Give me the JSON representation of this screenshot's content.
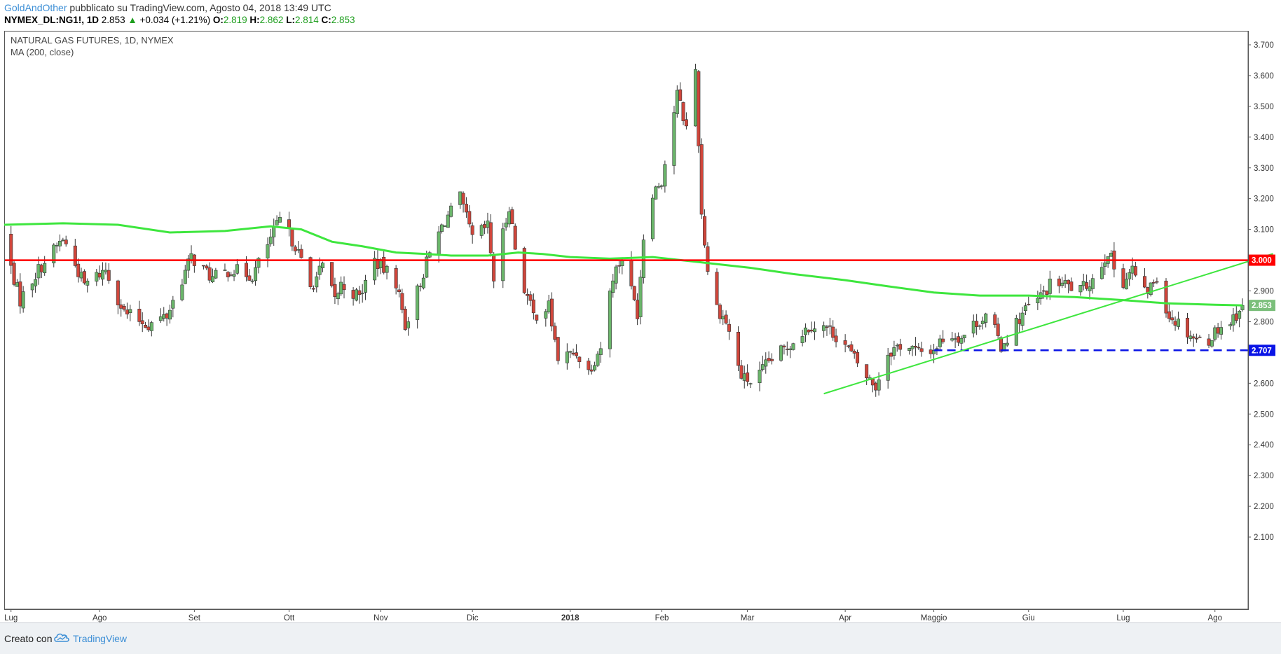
{
  "header": {
    "author": "GoldAndOther",
    "published": "pubblicato su TradingView.com, Agosto 04, 2018 13:49 UTC",
    "symbol": "NYMEX_DL:NG1!, 1D",
    "last": "2.853",
    "change": "+0.034 (+1.21%)",
    "o_label": "O:",
    "o": "2.819",
    "h_label": "H:",
    "h": "2.862",
    "l_label": "L:",
    "l": "2.814",
    "c_label": "C:",
    "c": "2.853"
  },
  "legend": {
    "title": "NATURAL GAS FUTURES, 1D, NYMEX",
    "indicator": "MA (200, close)"
  },
  "footer": {
    "made_with": "Creato con",
    "brand": "TradingView"
  },
  "colors": {
    "up_candle": "#6ab56a",
    "down_candle": "#d0463b",
    "ma_line": "#3ee63e",
    "resistance": "#ff0000",
    "support": "#0a14e6",
    "trendline": "#3ee63e"
  },
  "chart_data": {
    "type": "candlestick",
    "title": "NATURAL GAS FUTURES, 1D, NYMEX",
    "xlabel": "",
    "ylabel": "",
    "x_range": [
      "2017-07-01",
      "2018-08-10"
    ],
    "ylim": [
      2.08,
      3.75
    ],
    "x_ticks": [
      {
        "label": "Lug",
        "date": "2017-07-03"
      },
      {
        "label": "Ago",
        "date": "2017-08-01"
      },
      {
        "label": "Set",
        "date": "2017-09-01"
      },
      {
        "label": "Ott",
        "date": "2017-10-02"
      },
      {
        "label": "Nov",
        "date": "2017-11-01"
      },
      {
        "label": "Dic",
        "date": "2017-12-01"
      },
      {
        "label": "2018",
        "date": "2018-01-02",
        "bold": true
      },
      {
        "label": "Feb",
        "date": "2018-02-01"
      },
      {
        "label": "Mar",
        "date": "2018-03-01"
      },
      {
        "label": "Apr",
        "date": "2018-04-02"
      },
      {
        "label": "Maggio",
        "date": "2018-05-01"
      },
      {
        "label": "Giu",
        "date": "2018-06-01"
      },
      {
        "label": "Lug",
        "date": "2018-07-02"
      },
      {
        "label": "Ago",
        "date": "2018-08-01"
      }
    ],
    "y_ticks": [
      "2.100",
      "2.200",
      "2.300",
      "2.400",
      "2.500",
      "2.600",
      "2.700",
      "2.800",
      "2.900",
      "3.000",
      "3.100",
      "3.200",
      "3.300",
      "3.400",
      "3.500",
      "3.600",
      "3.700"
    ],
    "price_path": [
      [
        "2017-06-30",
        3.08
      ],
      [
        "2017-07-06",
        2.87
      ],
      [
        "2017-07-12",
        2.97
      ],
      [
        "2017-07-20",
        3.07
      ],
      [
        "2017-07-27",
        2.92
      ],
      [
        "2017-08-03",
        2.97
      ],
      [
        "2017-08-09",
        2.83
      ],
      [
        "2017-08-17",
        2.79
      ],
      [
        "2017-08-23",
        2.82
      ],
      [
        "2017-08-31",
        3.01
      ],
      [
        "2017-09-07",
        2.94
      ],
      [
        "2017-09-13",
        2.97
      ],
      [
        "2017-09-20",
        2.95
      ],
      [
        "2017-09-26",
        3.07
      ],
      [
        "2017-09-29",
        3.13
      ],
      [
        "2017-10-04",
        3.05
      ],
      [
        "2017-10-09",
        2.91
      ],
      [
        "2017-10-13",
        2.98
      ],
      [
        "2017-10-17",
        2.87
      ],
      [
        "2017-10-19",
        2.92
      ],
      [
        "2017-10-25",
        2.88
      ],
      [
        "2017-10-30",
        3.0
      ],
      [
        "2017-11-06",
        2.93
      ],
      [
        "2017-11-09",
        2.79
      ],
      [
        "2017-11-13",
        2.9
      ],
      [
        "2017-11-17",
        3.02
      ],
      [
        "2017-11-22",
        3.13
      ],
      [
        "2017-11-27",
        3.2
      ],
      [
        "2017-12-01",
        3.07
      ],
      [
        "2017-12-06",
        3.11
      ],
      [
        "2017-12-08",
        2.94
      ],
      [
        "2017-12-13",
        3.18
      ],
      [
        "2017-12-16",
        2.97
      ],
      [
        "2017-12-21",
        2.82
      ],
      [
        "2017-12-26",
        2.85
      ],
      [
        "2017-12-29",
        2.68
      ],
      [
        "2018-01-04",
        2.7
      ],
      [
        "2018-01-08",
        2.64
      ],
      [
        "2018-01-12",
        2.72
      ],
      [
        "2018-01-16",
        2.95
      ],
      [
        "2018-01-19",
        3.01
      ],
      [
        "2018-01-24",
        2.83
      ],
      [
        "2018-01-27",
        3.2
      ],
      [
        "2018-02-01",
        3.26
      ],
      [
        "2018-02-06",
        3.54
      ],
      [
        "2018-02-09",
        3.43
      ],
      [
        "2018-02-12",
        3.62
      ],
      [
        "2018-02-14",
        3.15
      ],
      [
        "2018-02-17",
        2.88
      ],
      [
        "2018-02-22",
        2.8
      ],
      [
        "2018-02-27",
        2.62
      ],
      [
        "2018-03-03",
        2.6
      ],
      [
        "2018-03-08",
        2.67
      ],
      [
        "2018-03-13",
        2.71
      ],
      [
        "2018-03-18",
        2.76
      ],
      [
        "2018-03-22",
        2.79
      ],
      [
        "2018-03-27",
        2.78
      ],
      [
        "2018-04-01",
        2.74
      ],
      [
        "2018-04-05",
        2.68
      ],
      [
        "2018-04-09",
        2.62
      ],
      [
        "2018-04-12",
        2.59
      ],
      [
        "2018-04-16",
        2.7
      ],
      [
        "2018-04-21",
        2.73
      ],
      [
        "2018-04-26",
        2.7
      ],
      [
        "2018-05-01",
        2.71
      ],
      [
        "2018-05-05",
        2.76
      ],
      [
        "2018-05-10",
        2.75
      ],
      [
        "2018-05-15",
        2.8
      ],
      [
        "2018-05-19",
        2.82
      ],
      [
        "2018-05-23",
        2.72
      ],
      [
        "2018-05-27",
        2.78
      ],
      [
        "2018-05-31",
        2.84
      ],
      [
        "2018-06-04",
        2.87
      ],
      [
        "2018-06-09",
        2.93
      ],
      [
        "2018-06-13",
        2.92
      ],
      [
        "2018-06-18",
        2.9
      ],
      [
        "2018-06-23",
        2.95
      ],
      [
        "2018-06-27",
        3.03
      ],
      [
        "2018-07-01",
        2.92
      ],
      [
        "2018-07-05",
        2.97
      ],
      [
        "2018-07-09",
        2.89
      ],
      [
        "2018-07-13",
        2.94
      ],
      [
        "2018-07-17",
        2.82
      ],
      [
        "2018-07-21",
        2.79
      ],
      [
        "2018-07-25",
        2.75
      ],
      [
        "2018-07-29",
        2.73
      ],
      [
        "2018-08-02",
        2.78
      ],
      [
        "2018-08-06",
        2.8
      ],
      [
        "2018-08-10",
        2.853
      ]
    ],
    "series": [
      {
        "name": "MA (200, close)",
        "type": "line",
        "points": [
          [
            "2017-06-30",
            3.115
          ],
          [
            "2017-07-20",
            3.12
          ],
          [
            "2017-08-07",
            3.115
          ],
          [
            "2017-08-24",
            3.09
          ],
          [
            "2017-09-11",
            3.095
          ],
          [
            "2017-09-26",
            3.11
          ],
          [
            "2017-10-06",
            3.1
          ],
          [
            "2017-10-16",
            3.06
          ],
          [
            "2017-10-26",
            3.045
          ],
          [
            "2017-11-06",
            3.025
          ],
          [
            "2017-11-16",
            3.02
          ],
          [
            "2017-11-24",
            3.015
          ],
          [
            "2017-12-06",
            3.015
          ],
          [
            "2017-12-16",
            3.025
          ],
          [
            "2017-12-24",
            3.02
          ],
          [
            "2018-01-02",
            3.01
          ],
          [
            "2018-01-15",
            3.005
          ],
          [
            "2018-01-29",
            3.01
          ],
          [
            "2018-02-12",
            2.995
          ],
          [
            "2018-03-02",
            2.975
          ],
          [
            "2018-03-16",
            2.955
          ],
          [
            "2018-04-02",
            2.935
          ],
          [
            "2018-04-16",
            2.915
          ],
          [
            "2018-05-01",
            2.895
          ],
          [
            "2018-05-16",
            2.885
          ],
          [
            "2018-06-01",
            2.885
          ],
          [
            "2018-06-16",
            2.88
          ],
          [
            "2018-07-02",
            2.87
          ],
          [
            "2018-07-16",
            2.86
          ],
          [
            "2018-08-01",
            2.855
          ],
          [
            "2018-08-10",
            2.853
          ]
        ]
      }
    ],
    "annotations": {
      "horizontal_lines": [
        {
          "value": 3.0,
          "label": "3.000",
          "color": "#ff0000",
          "style": "solid"
        },
        {
          "value": 2.707,
          "label": "2.707",
          "color": "#0a14e6",
          "style": "dashed",
          "start": "2018-05-01"
        }
      ],
      "trendline": {
        "from": [
          "2018-03-26",
          2.566
        ],
        "to": [
          "2018-08-20",
          3.021
        ]
      },
      "last_price_label": {
        "value": 2.853,
        "label": "2.853"
      }
    }
  }
}
